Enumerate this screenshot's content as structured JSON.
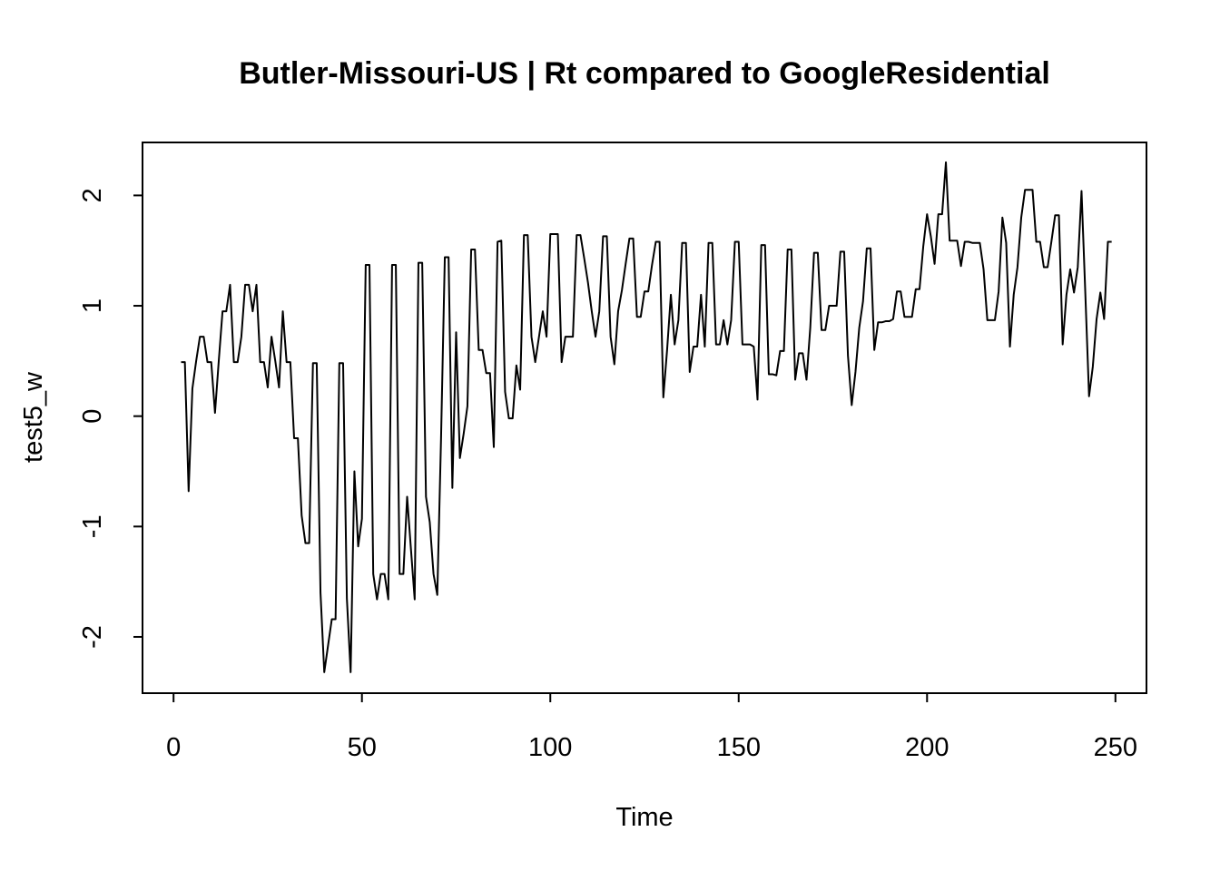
{
  "chart_data": {
    "type": "line",
    "title": "Butler-Missouri-US | Rt compared to GoogleResidential",
    "xlabel": "Time",
    "ylabel": "test5_w",
    "xlim": [
      -8.24,
      258.24
    ],
    "ylim": [
      -2.51,
      2.48
    ],
    "x_ticks": [
      0,
      50,
      100,
      150,
      200,
      250
    ],
    "y_ticks": [
      -2,
      -1,
      0,
      1,
      2
    ],
    "grid": false,
    "legend": "none",
    "series": [
      {
        "name": "test5_w",
        "x_start": 2,
        "values": [
          0.49,
          0.49,
          -0.68,
          0.25,
          0.5,
          0.72,
          0.72,
          0.49,
          0.49,
          0.03,
          0.5,
          0.95,
          0.95,
          1.19,
          0.49,
          0.49,
          0.72,
          1.19,
          1.19,
          0.95,
          1.19,
          0.49,
          0.49,
          0.26,
          0.72,
          0.5,
          0.26,
          0.95,
          0.49,
          0.49,
          -0.2,
          -0.2,
          -0.9,
          -1.15,
          -1.15,
          0.48,
          0.48,
          -1.6,
          -2.32,
          -2.08,
          -1.84,
          -1.84,
          0.48,
          0.48,
          -1.65,
          -2.32,
          -0.5,
          -1.18,
          -0.93,
          1.37,
          1.37,
          -1.43,
          -1.66,
          -1.43,
          -1.43,
          -1.66,
          1.37,
          1.37,
          -1.43,
          -1.43,
          -0.73,
          -1.2,
          -1.66,
          1.39,
          1.39,
          -0.73,
          -0.96,
          -1.43,
          -1.62,
          -0.2,
          1.44,
          1.44,
          -0.65,
          0.76,
          -0.38,
          -0.16,
          0.09,
          1.51,
          1.51,
          0.6,
          0.6,
          0.39,
          0.39,
          -0.28,
          1.58,
          1.59,
          0.22,
          -0.02,
          -0.02,
          0.46,
          0.24,
          1.64,
          1.64,
          0.72,
          0.49,
          0.72,
          0.95,
          0.72,
          1.65,
          1.65,
          1.65,
          0.49,
          0.72,
          0.72,
          0.72,
          1.64,
          1.64,
          1.43,
          1.21,
          0.95,
          0.72,
          0.95,
          1.63,
          1.63,
          0.72,
          0.47,
          0.95,
          1.14,
          1.38,
          1.61,
          1.61,
          0.9,
          0.9,
          1.13,
          1.13,
          1.37,
          1.58,
          1.58,
          0.17,
          0.6,
          1.1,
          0.65,
          0.87,
          1.57,
          1.57,
          0.4,
          0.63,
          0.63,
          1.1,
          0.63,
          1.57,
          1.57,
          0.65,
          0.65,
          0.87,
          0.65,
          0.87,
          1.58,
          1.58,
          0.65,
          0.65,
          0.65,
          0.63,
          0.15,
          1.55,
          1.55,
          0.38,
          0.38,
          0.37,
          0.59,
          0.59,
          1.51,
          1.51,
          0.33,
          0.57,
          0.57,
          0.33,
          0.8,
          1.48,
          1.48,
          0.78,
          0.78,
          1.0,
          1.0,
          1.0,
          1.49,
          1.49,
          0.55,
          0.1,
          0.4,
          0.8,
          1.04,
          1.52,
          1.52,
          0.6,
          0.85,
          0.85,
          0.86,
          0.86,
          0.88,
          1.13,
          1.13,
          0.9,
          0.9,
          0.9,
          1.15,
          1.15,
          1.54,
          1.83,
          1.63,
          1.38,
          1.83,
          1.83,
          2.3,
          1.59,
          1.59,
          1.59,
          1.36,
          1.58,
          1.58,
          1.57,
          1.57,
          1.57,
          1.33,
          0.87,
          0.87,
          0.87,
          1.13,
          1.8,
          1.57,
          0.63,
          1.1,
          1.35,
          1.8,
          2.05,
          2.05,
          2.05,
          1.58,
          1.58,
          1.35,
          1.35,
          1.58,
          1.82,
          1.82,
          0.65,
          1.1,
          1.33,
          1.12,
          1.35,
          2.04,
          1.12,
          0.18,
          0.45,
          0.88,
          1.12,
          0.88,
          1.58,
          1.58
        ]
      }
    ]
  }
}
